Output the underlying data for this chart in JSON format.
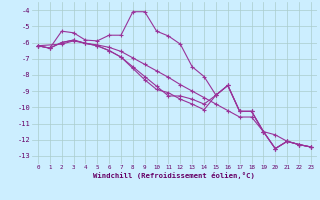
{
  "xlabel": "Windchill (Refroidissement éolien,°C)",
  "background_color": "#cceeff",
  "grid_color": "#aacccc",
  "line_color": "#993399",
  "xlim": [
    -0.5,
    23.5
  ],
  "ylim": [
    -13.5,
    -3.5
  ],
  "xticks": [
    0,
    1,
    2,
    3,
    4,
    5,
    6,
    7,
    8,
    9,
    10,
    11,
    12,
    13,
    14,
    15,
    16,
    17,
    18,
    19,
    20,
    21,
    22,
    23
  ],
  "yticks": [
    -13,
    -12,
    -11,
    -10,
    -9,
    -8,
    -7,
    -6,
    -5,
    -4
  ],
  "line1_x": [
    0,
    1,
    2,
    3,
    4,
    5,
    6,
    7,
    8,
    9,
    10,
    11,
    12,
    13,
    14,
    15,
    16,
    17,
    18,
    19,
    20,
    21,
    22,
    23
  ],
  "line1_y": [
    -6.2,
    -6.35,
    -5.3,
    -5.4,
    -5.85,
    -5.9,
    -5.55,
    -5.55,
    -4.1,
    -4.1,
    -5.3,
    -5.6,
    -6.1,
    -7.5,
    -8.1,
    -9.25,
    -8.65,
    -10.25,
    -10.25,
    -11.5,
    -12.55,
    -12.1,
    -12.3,
    -12.45
  ],
  "line2_x": [
    0,
    1,
    2,
    3,
    4,
    5,
    6,
    7,
    8,
    9,
    10,
    11,
    12,
    13,
    14,
    15,
    16,
    17,
    18,
    19,
    20,
    21,
    22,
    23
  ],
  "line2_y": [
    -6.2,
    -6.35,
    -6.0,
    -5.85,
    -6.05,
    -6.15,
    -6.3,
    -6.55,
    -6.95,
    -7.35,
    -7.75,
    -8.15,
    -8.6,
    -9.0,
    -9.4,
    -9.8,
    -10.2,
    -10.6,
    -10.6,
    -11.5,
    -11.7,
    -12.1,
    -12.3,
    -12.45
  ],
  "line3_x": [
    0,
    1,
    2,
    3,
    4,
    5,
    6,
    7,
    8,
    9,
    10,
    11,
    12,
    13,
    14,
    15,
    16,
    17,
    18,
    19,
    20,
    21,
    22,
    23
  ],
  "line3_y": [
    -6.2,
    -6.35,
    -6.0,
    -5.85,
    -6.05,
    -6.2,
    -6.5,
    -6.9,
    -7.5,
    -8.1,
    -8.7,
    -9.3,
    -9.3,
    -9.5,
    -9.8,
    -9.25,
    -8.65,
    -10.25,
    -10.25,
    -11.5,
    -12.55,
    -12.1,
    -12.3,
    -12.45
  ],
  "line4_x": [
    0,
    2,
    3,
    4,
    5,
    6,
    7,
    8,
    9,
    10,
    11,
    12,
    13,
    14,
    15,
    16,
    17,
    18,
    19,
    20,
    21,
    22,
    23
  ],
  "line4_y": [
    -6.2,
    -6.1,
    -5.9,
    -6.05,
    -6.2,
    -6.5,
    -6.9,
    -7.6,
    -8.3,
    -8.9,
    -9.1,
    -9.5,
    -9.8,
    -10.15,
    -9.25,
    -8.65,
    -10.25,
    -10.25,
    -11.5,
    -12.55,
    -12.1,
    -12.3,
    -12.45
  ]
}
